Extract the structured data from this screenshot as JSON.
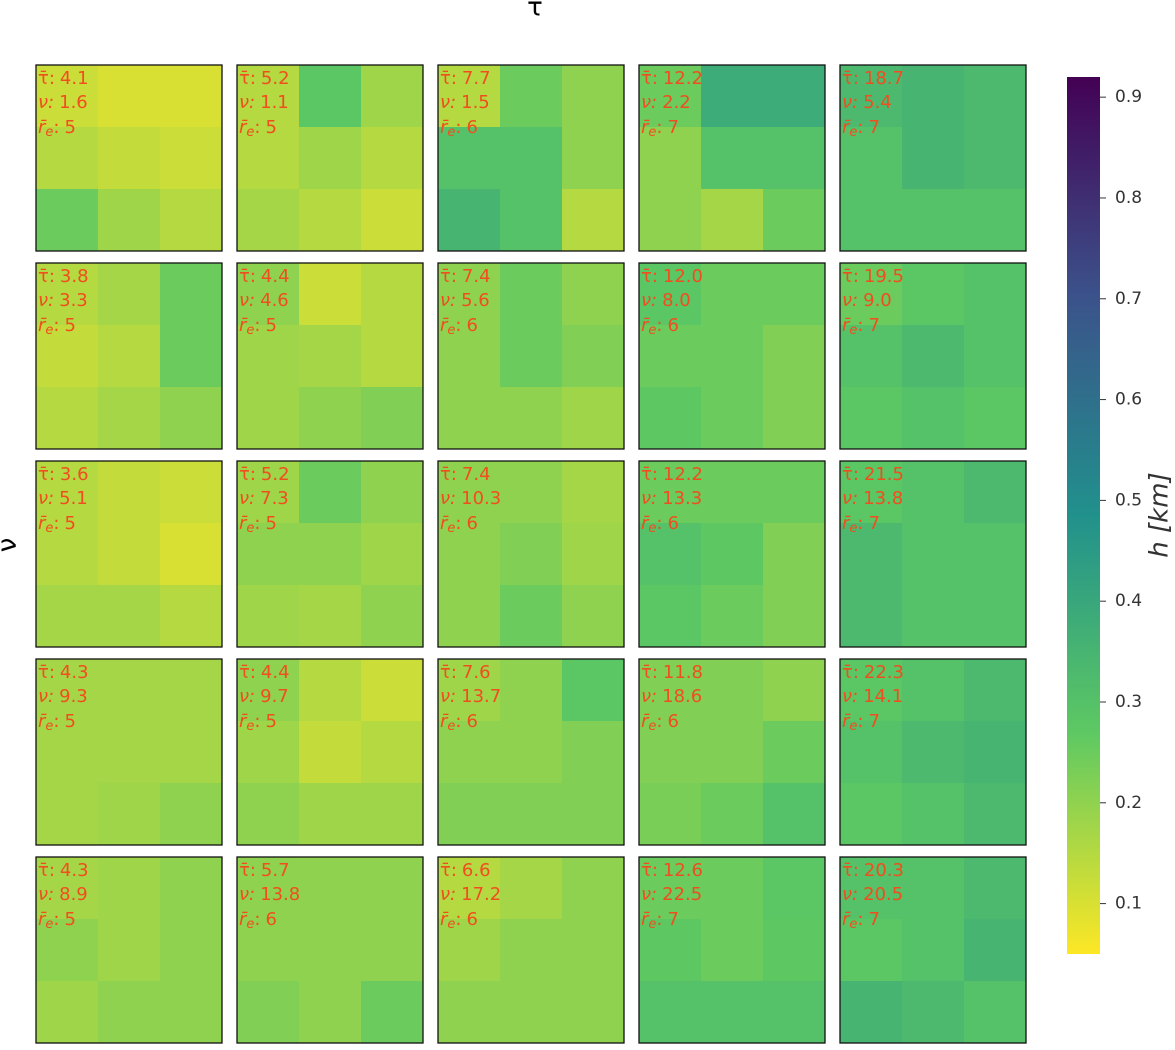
{
  "chart_data": {
    "type": "heatmap-grid",
    "title": "τ̄",
    "ylabel": "ν",
    "annotation_color": "#f04e1e",
    "labels": {
      "tau": "τ̄:",
      "nu": "ν:",
      "re": "r̄",
      "re_sub": "e",
      "re_colon": ":"
    },
    "colorbar": {
      "label": "h [km]",
      "lim": [
        0.05,
        0.92
      ],
      "ticks": [
        0.1,
        0.2,
        0.3,
        0.4,
        0.5,
        0.6,
        0.7,
        0.8,
        0.9
      ],
      "colormap": "viridis_r"
    },
    "panels": [
      [
        {
          "tau": "4.1",
          "nu": "1.6",
          "re": "5",
          "cells": [
            [
              0.12,
              0.1,
              0.1
            ],
            [
              0.15,
              0.13,
              0.12
            ],
            [
              0.25,
              0.18,
              0.15
            ]
          ]
        },
        {
          "tau": "5.2",
          "nu": "1.1",
          "re": "5",
          "cells": [
            [
              0.15,
              0.28,
              0.18
            ],
            [
              0.15,
              0.18,
              0.15
            ],
            [
              0.17,
              0.15,
              0.12
            ]
          ]
        },
        {
          "tau": "7.7",
          "nu": "1.5",
          "re": "6",
          "cells": [
            [
              0.15,
              0.25,
              0.2
            ],
            [
              0.3,
              0.3,
              0.2
            ],
            [
              0.35,
              0.3,
              0.15
            ]
          ]
        },
        {
          "tau": "12.2",
          "nu": "2.2",
          "re": "7",
          "cells": [
            [
              0.25,
              0.38,
              0.38
            ],
            [
              0.2,
              0.3,
              0.3
            ],
            [
              0.2,
              0.17,
              0.25
            ]
          ]
        },
        {
          "tau": "18.7",
          "nu": "5.4",
          "re": "7",
          "cells": [
            [
              0.33,
              0.35,
              0.33
            ],
            [
              0.3,
              0.35,
              0.33
            ],
            [
              0.3,
              0.3,
              0.3
            ]
          ]
        }
      ],
      [
        {
          "tau": "3.8",
          "nu": "3.3",
          "re": "5",
          "cells": [
            [
              0.15,
              0.17,
              0.25
            ],
            [
              0.13,
              0.15,
              0.25
            ],
            [
              0.15,
              0.17,
              0.2
            ]
          ]
        },
        {
          "tau": "4.4",
          "nu": "4.6",
          "re": "5",
          "cells": [
            [
              0.2,
              0.12,
              0.15
            ],
            [
              0.18,
              0.17,
              0.15
            ],
            [
              0.18,
              0.2,
              0.22
            ]
          ]
        },
        {
          "tau": "7.4",
          "nu": "5.6",
          "re": "6",
          "cells": [
            [
              0.2,
              0.25,
              0.2
            ],
            [
              0.2,
              0.25,
              0.22
            ],
            [
              0.2,
              0.2,
              0.18
            ]
          ]
        },
        {
          "tau": "12.0",
          "nu": "8.0",
          "re": "6",
          "cells": [
            [
              0.28,
              0.25,
              0.25
            ],
            [
              0.25,
              0.25,
              0.22
            ],
            [
              0.27,
              0.25,
              0.22
            ]
          ]
        },
        {
          "tau": "19.5",
          "nu": "9.0",
          "re": "7",
          "cells": [
            [
              0.25,
              0.28,
              0.3
            ],
            [
              0.3,
              0.33,
              0.3
            ],
            [
              0.28,
              0.3,
              0.28
            ]
          ]
        }
      ],
      [
        {
          "tau": "3.6",
          "nu": "5.1",
          "re": "5",
          "cells": [
            [
              0.15,
              0.13,
              0.12
            ],
            [
              0.15,
              0.13,
              0.1
            ],
            [
              0.17,
              0.17,
              0.15
            ]
          ]
        },
        {
          "tau": "5.2",
          "nu": "7.3",
          "re": "5",
          "cells": [
            [
              0.18,
              0.25,
              0.2
            ],
            [
              0.2,
              0.2,
              0.18
            ],
            [
              0.18,
              0.17,
              0.2
            ]
          ]
        },
        {
          "tau": "7.4",
          "nu": "10.3",
          "re": "6",
          "cells": [
            [
              0.2,
              0.2,
              0.17
            ],
            [
              0.2,
              0.22,
              0.18
            ],
            [
              0.2,
              0.25,
              0.2
            ]
          ]
        },
        {
          "tau": "12.2",
          "nu": "13.3",
          "re": "6",
          "cells": [
            [
              0.25,
              0.25,
              0.25
            ],
            [
              0.3,
              0.27,
              0.22
            ],
            [
              0.28,
              0.25,
              0.22
            ]
          ]
        },
        {
          "tau": "21.5",
          "nu": "13.8",
          "re": "7",
          "cells": [
            [
              0.28,
              0.3,
              0.33
            ],
            [
              0.33,
              0.3,
              0.3
            ],
            [
              0.33,
              0.3,
              0.3
            ]
          ]
        }
      ],
      [
        {
          "tau": "4.3",
          "nu": "9.3",
          "re": "5",
          "cells": [
            [
              0.17,
              0.17,
              0.17
            ],
            [
              0.17,
              0.17,
              0.17
            ],
            [
              0.17,
              0.18,
              0.2
            ]
          ]
        },
        {
          "tau": "4.4",
          "nu": "9.7",
          "re": "5",
          "cells": [
            [
              0.2,
              0.15,
              0.12
            ],
            [
              0.18,
              0.13,
              0.15
            ],
            [
              0.2,
              0.18,
              0.18
            ]
          ]
        },
        {
          "tau": "7.6",
          "nu": "13.7",
          "re": "6",
          "cells": [
            [
              0.18,
              0.2,
              0.28
            ],
            [
              0.2,
              0.2,
              0.22
            ],
            [
              0.22,
              0.22,
              0.22
            ]
          ]
        },
        {
          "tau": "11.8",
          "nu": "18.6",
          "re": "6",
          "cells": [
            [
              0.22,
              0.22,
              0.2
            ],
            [
              0.22,
              0.22,
              0.25
            ],
            [
              0.23,
              0.25,
              0.3
            ]
          ]
        },
        {
          "tau": "22.3",
          "nu": "14.1",
          "re": "7",
          "cells": [
            [
              0.28,
              0.3,
              0.33
            ],
            [
              0.3,
              0.33,
              0.35
            ],
            [
              0.28,
              0.3,
              0.33
            ]
          ]
        }
      ],
      [
        {
          "tau": "4.3",
          "nu": "8.9",
          "re": "5",
          "cells": [
            [
              0.17,
              0.18,
              0.2
            ],
            [
              0.2,
              0.18,
              0.2
            ],
            [
              0.18,
              0.2,
              0.2
            ]
          ]
        },
        {
          "tau": "5.7",
          "nu": "13.8",
          "re": "6",
          "cells": [
            [
              0.2,
              0.2,
              0.2
            ],
            [
              0.2,
              0.2,
              0.2
            ],
            [
              0.22,
              0.2,
              0.25
            ]
          ]
        },
        {
          "tau": "6.6",
          "nu": "17.2",
          "re": "6",
          "cells": [
            [
              0.15,
              0.17,
              0.2
            ],
            [
              0.18,
              0.2,
              0.2
            ],
            [
              0.2,
              0.2,
              0.2
            ]
          ]
        },
        {
          "tau": "12.6",
          "nu": "22.5",
          "re": "7",
          "cells": [
            [
              0.25,
              0.25,
              0.28
            ],
            [
              0.27,
              0.25,
              0.27
            ],
            [
              0.3,
              0.3,
              0.3
            ]
          ]
        },
        {
          "tau": "20.3",
          "nu": "20.5",
          "re": "7",
          "cells": [
            [
              0.3,
              0.3,
              0.33
            ],
            [
              0.28,
              0.3,
              0.35
            ],
            [
              0.35,
              0.33,
              0.3
            ]
          ]
        }
      ]
    ]
  }
}
